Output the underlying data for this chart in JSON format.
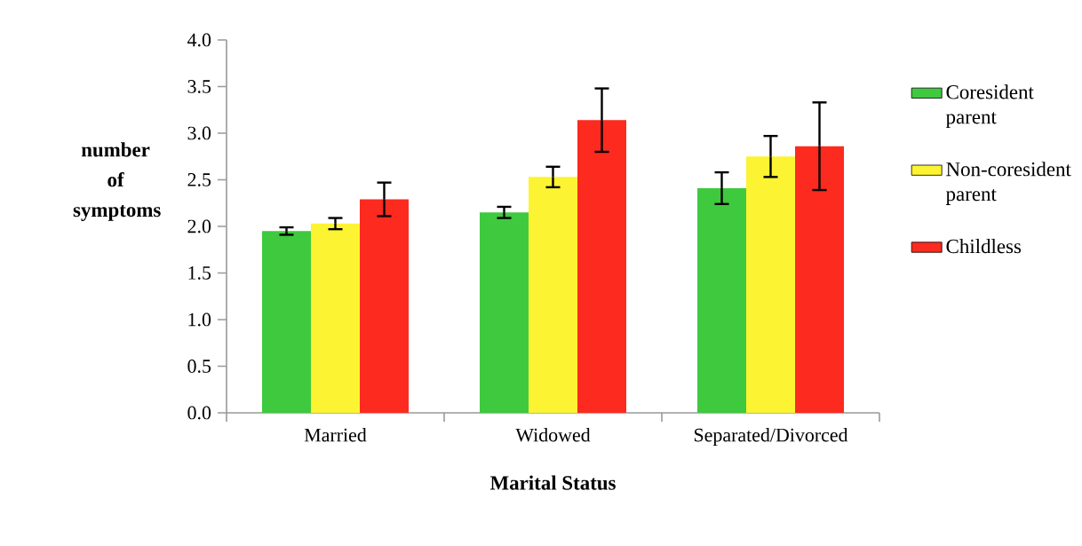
{
  "chart_data": {
    "type": "bar",
    "xlabel": "Marital Status",
    "ylabel": "number of symptoms",
    "categories": [
      "Married",
      "Widowed",
      "Separated/Divorced"
    ],
    "series": [
      {
        "name": "Coresident parent",
        "color": "#3fc93f",
        "values": [
          1.95,
          2.15,
          2.41
        ],
        "errors": [
          0.04,
          0.06,
          0.17
        ]
      },
      {
        "name": "Non-coresident parent",
        "color": "#fcf432",
        "values": [
          2.03,
          2.53,
          2.75
        ],
        "errors": [
          0.06,
          0.11,
          0.22
        ]
      },
      {
        "name": "Childless",
        "color": "#fc2a1f",
        "values": [
          2.29,
          3.14,
          2.86
        ],
        "errors": [
          0.18,
          0.34,
          0.47
        ]
      }
    ],
    "ylim": [
      0,
      4
    ],
    "yticks": [
      {
        "value": 0,
        "label": "0.0"
      },
      {
        "value": 0.5,
        "label": "0.5"
      },
      {
        "value": 1,
        "label": "1.0"
      },
      {
        "value": 1.5,
        "label": "1.5"
      },
      {
        "value": 2,
        "label": "2.0"
      },
      {
        "value": 2.5,
        "label": "2.5"
      },
      {
        "value": 3,
        "label": "3.0"
      },
      {
        "value": 3.5,
        "label": "3.5"
      },
      {
        "value": 4,
        "label": "4.0"
      }
    ],
    "legend": "right"
  }
}
